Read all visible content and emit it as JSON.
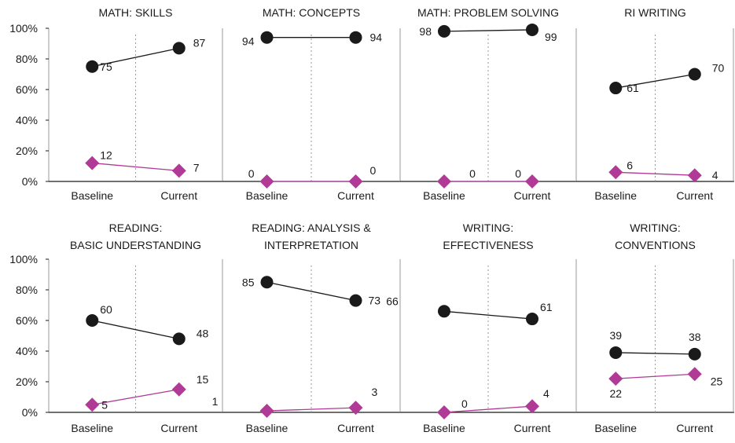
{
  "chart_data": [
    {
      "type": "line",
      "title": [
        "MATH: SKILLS"
      ],
      "categories": [
        "Baseline",
        "Current"
      ],
      "ylim": [
        0,
        100
      ],
      "yticks": [
        "0%",
        "20%",
        "40%",
        "60%",
        "80%",
        "100%"
      ],
      "series": [
        {
          "color": "#1a1a1a",
          "marker": "circle",
          "values": [
            75,
            87
          ]
        },
        {
          "color": "#b03a96",
          "marker": "diamond",
          "values": [
            12,
            7
          ]
        }
      ]
    },
    {
      "type": "line",
      "title": [
        "MATH: CONCEPTS"
      ],
      "categories": [
        "Baseline",
        "Current"
      ],
      "ylim": [
        0,
        100
      ],
      "series": [
        {
          "color": "#1a1a1a",
          "marker": "circle",
          "values": [
            94,
            94
          ]
        },
        {
          "color": "#b03a96",
          "marker": "diamond",
          "values": [
            0,
            0
          ]
        }
      ]
    },
    {
      "type": "line",
      "title": [
        "MATH: PROBLEM SOLVING"
      ],
      "categories": [
        "Baseline",
        "Current"
      ],
      "ylim": [
        0,
        100
      ],
      "series": [
        {
          "color": "#1a1a1a",
          "marker": "circle",
          "values": [
            98,
            99
          ]
        },
        {
          "color": "#b03a96",
          "marker": "diamond",
          "values": [
            0,
            0
          ]
        }
      ]
    },
    {
      "type": "line",
      "title": [
        "RI WRITING"
      ],
      "categories": [
        "Baseline",
        "Current"
      ],
      "ylim": [
        0,
        100
      ],
      "series": [
        {
          "color": "#1a1a1a",
          "marker": "circle",
          "values": [
            61,
            70
          ]
        },
        {
          "color": "#b03a96",
          "marker": "diamond",
          "values": [
            6,
            4
          ]
        }
      ]
    },
    {
      "type": "line",
      "title": [
        "READING:",
        "BASIC UNDERSTANDING"
      ],
      "categories": [
        "Baseline",
        "Current"
      ],
      "ylim": [
        0,
        100
      ],
      "yticks": [
        "0%",
        "20%",
        "40%",
        "60%",
        "80%",
        "100%"
      ],
      "series": [
        {
          "color": "#1a1a1a",
          "marker": "circle",
          "values": [
            60,
            48
          ]
        },
        {
          "color": "#b03a96",
          "marker": "diamond",
          "values": [
            5,
            15
          ]
        }
      ]
    },
    {
      "type": "line",
      "title": [
        "READING: ANALYSIS &",
        "INTERPRETATION"
      ],
      "categories": [
        "Baseline",
        "Current"
      ],
      "ylim": [
        0,
        100
      ],
      "series": [
        {
          "color": "#1a1a1a",
          "marker": "circle",
          "values": [
            85,
            73
          ]
        },
        {
          "color": "#b03a96",
          "marker": "diamond",
          "values": [
            1,
            3
          ]
        }
      ]
    },
    {
      "type": "line",
      "title": [
        "WRITING:",
        "EFFECTIVENESS"
      ],
      "categories": [
        "Baseline",
        "Current"
      ],
      "ylim": [
        0,
        100
      ],
      "series": [
        {
          "color": "#1a1a1a",
          "marker": "circle",
          "values": [
            66,
            61
          ]
        },
        {
          "color": "#b03a96",
          "marker": "diamond",
          "values": [
            0,
            4
          ]
        }
      ]
    },
    {
      "type": "line",
      "title": [
        "WRITING:",
        "CONVENTIONS"
      ],
      "categories": [
        "Baseline",
        "Current"
      ],
      "ylim": [
        0,
        100
      ],
      "series": [
        {
          "color": "#1a1a1a",
          "marker": "circle",
          "values": [
            39,
            38
          ]
        },
        {
          "color": "#b03a96",
          "marker": "diamond",
          "values": [
            22,
            25
          ]
        }
      ]
    }
  ]
}
